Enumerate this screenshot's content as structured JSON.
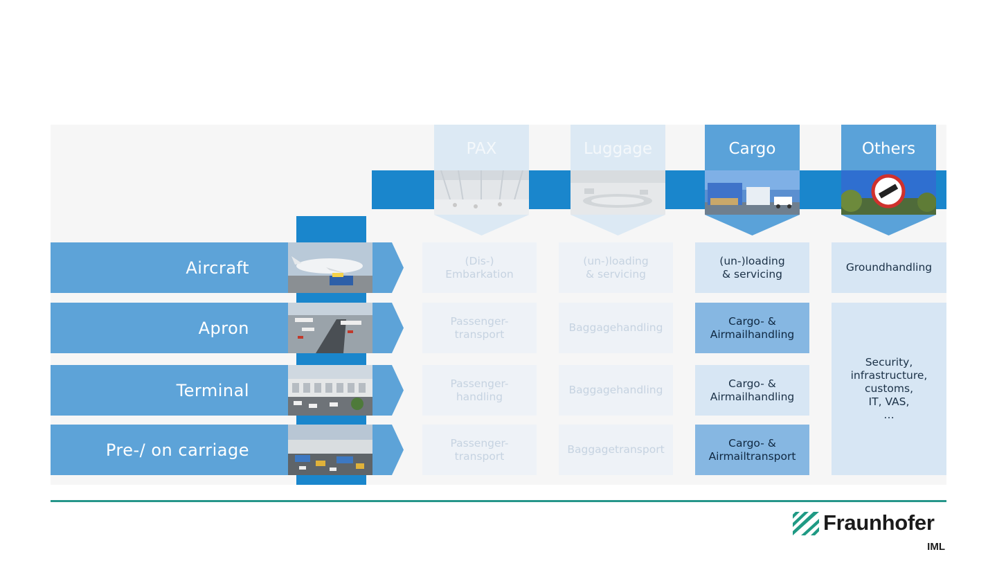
{
  "colors": {
    "accent": "#1a86cc",
    "row_band": "#5da3d8",
    "divider": "#26968a"
  },
  "columns": [
    {
      "label": "PAX",
      "photo": "terminal-hall-photo",
      "state": "faded"
    },
    {
      "label": "Luggage",
      "photo": "baggage-hall-photo",
      "state": "faded"
    },
    {
      "label": "Cargo",
      "photo": "cargo-loading-photo",
      "state": "strong"
    },
    {
      "label": "Others",
      "photo": "road-sign-photo",
      "state": "strong"
    }
  ],
  "rows": [
    {
      "label": "Aircraft",
      "photo": "aircraft-photo"
    },
    {
      "label": "Apron",
      "photo": "apron-photo"
    },
    {
      "label": "Terminal",
      "photo": "terminal-building-photo"
    },
    {
      "label": "Pre-/ on carriage",
      "photo": "carriage-photo"
    }
  ],
  "cells": {
    "pax": [
      "(Dis-)\nEmbarkation",
      "Passenger-\ntransport",
      "Passenger-\nhandling",
      "Passenger-\ntransport"
    ],
    "luggage": [
      "(un-)loading\n& servicing",
      "Baggagehandling",
      "Baggagehandling",
      "Baggagetransport"
    ],
    "cargo": [
      "(un-)loading\n& servicing",
      "Cargo- &\nAirmailhandling",
      "Cargo- &\nAirmailhandling",
      "Cargo- &\nAirmailtransport"
    ],
    "others_top": "Groundhandling",
    "others_merged": "Security,\ninfrastructure,\ncustoms,\nIT, VAS,\n…"
  },
  "logo": {
    "name": "Fraunhofer",
    "sub": "IML"
  }
}
